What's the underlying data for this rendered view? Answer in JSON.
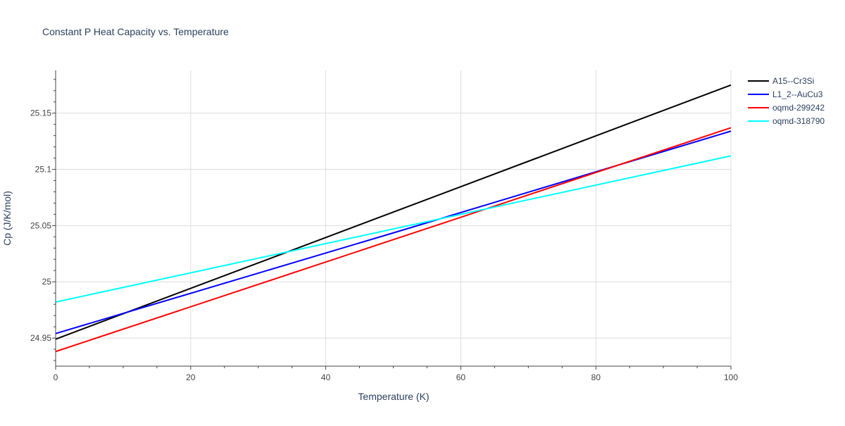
{
  "chart_data": {
    "type": "line",
    "title": "Constant P Heat Capacity vs. Temperature",
    "xlabel": "Temperature (K)",
    "ylabel": "Cp (J/K/mol)",
    "xlim": [
      0,
      100
    ],
    "ylim": [
      24.925,
      25.188
    ],
    "x_ticks": [
      0,
      20,
      40,
      60,
      80,
      100
    ],
    "x_tick_labels": [
      "0",
      "20",
      "40",
      "60",
      "80",
      "100"
    ],
    "y_ticks": [
      24.95,
      25,
      25.05,
      25.1,
      25.15
    ],
    "y_tick_labels": [
      "24.95",
      "25",
      "25.05",
      "25.1",
      "25.15"
    ],
    "grid": true,
    "legend_position": "top-right",
    "colors": {
      "text": "#444444",
      "title": "#2a3f5f",
      "axis_title": "#2a3f5f",
      "grid": "#dddddd",
      "axis_line": "#444444"
    },
    "series": [
      {
        "name": "A15--Cr3Si",
        "color": "#000000",
        "x": [
          0,
          100
        ],
        "y": [
          24.949,
          25.175
        ]
      },
      {
        "name": "L1_2--AuCu3",
        "color": "#0000ff",
        "x": [
          0,
          50,
          100
        ],
        "y": [
          24.954,
          25.0435,
          25.134
        ]
      },
      {
        "name": "oqmd-299242",
        "color": "#ff0000",
        "x": [
          0,
          50,
          100
        ],
        "y": [
          24.938,
          25.0375,
          25.137
        ]
      },
      {
        "name": "oqmd-318790",
        "color": "#00ffff",
        "x": [
          0,
          100
        ],
        "y": [
          24.982,
          25.112
        ]
      }
    ]
  }
}
